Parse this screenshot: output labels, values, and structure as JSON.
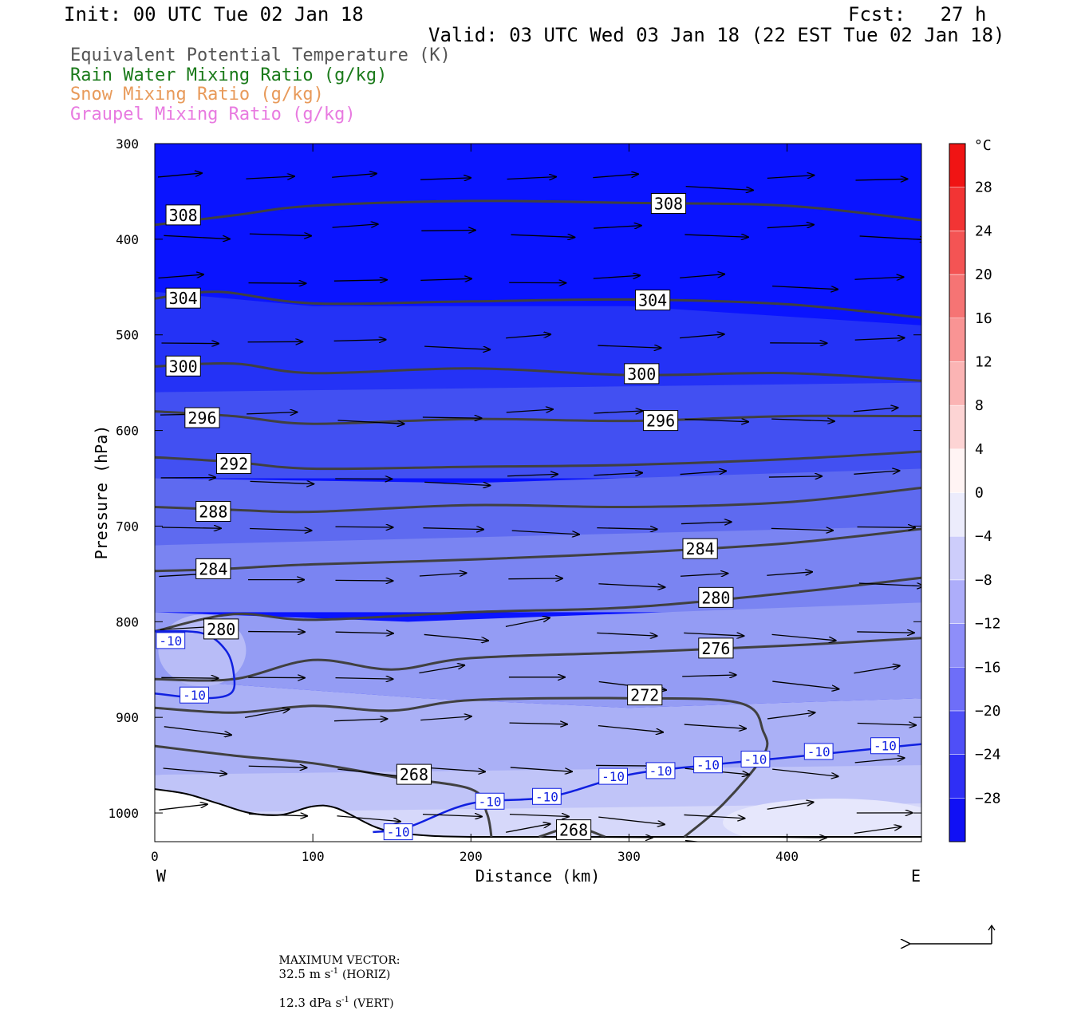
{
  "header": {
    "init": "Init: 00 UTC Tue 02 Jan 18",
    "fcst": "Fcst:   27 h",
    "valid": "Valid: 03 UTC Wed 03 Jan 18 (22 EST Tue 02 Jan 18)"
  },
  "legend_titles": [
    {
      "text": "Equivalent Potential Temperature (K)",
      "color": "#555555"
    },
    {
      "text": "Rain Water Mixing Ratio (g/kg)",
      "color": "#1a7a1a"
    },
    {
      "text": "Snow Mixing Ratio (g/kg)",
      "color": "#e89a5a"
    },
    {
      "text": "Graupel Mixing Ratio (g/kg)",
      "color": "#e87ae0"
    }
  ],
  "chart_data": {
    "type": "cross-section",
    "x_axis": {
      "label": "Distance (km)",
      "range": [
        0,
        485
      ],
      "ticks": [
        0,
        100,
        200,
        300,
        400
      ],
      "left_end_label": "W",
      "right_end_label": "E"
    },
    "y_axis": {
      "label": "Pressure (hPa)",
      "range": [
        300,
        1030
      ],
      "ticks": [
        300,
        400,
        500,
        600,
        700,
        800,
        900,
        1000
      ],
      "inverted": true
    },
    "colorbar": {
      "unit": "°C",
      "labels": [
        28,
        24,
        20,
        16,
        12,
        8,
        4,
        0,
        -4,
        -8,
        -12,
        -16,
        -20,
        -24,
        -28
      ],
      "min": -32,
      "max": 32,
      "step": 4
    },
    "theta_e_contours": [
      {
        "label": "308",
        "points": [
          [
            0,
            385
          ],
          [
            50,
            375
          ],
          [
            100,
            365
          ],
          [
            200,
            360
          ],
          [
            300,
            362
          ],
          [
            400,
            365
          ],
          [
            485,
            380
          ]
        ]
      },
      {
        "label": "304",
        "points": [
          [
            0,
            462
          ],
          [
            40,
            455
          ],
          [
            100,
            467
          ],
          [
            200,
            465
          ],
          [
            300,
            463
          ],
          [
            400,
            468
          ],
          [
            485,
            482
          ]
        ]
      },
      {
        "label": "300",
        "points": [
          [
            0,
            533
          ],
          [
            50,
            530
          ],
          [
            100,
            540
          ],
          [
            200,
            535
          ],
          [
            300,
            542
          ],
          [
            400,
            540
          ],
          [
            485,
            548
          ]
        ]
      },
      {
        "label": "296",
        "points": [
          [
            0,
            580
          ],
          [
            50,
            585
          ],
          [
            100,
            593
          ],
          [
            200,
            588
          ],
          [
            300,
            590
          ],
          [
            400,
            585
          ],
          [
            485,
            585
          ]
        ]
      },
      {
        "label": "292",
        "points": [
          [
            0,
            628
          ],
          [
            50,
            633
          ],
          [
            100,
            640
          ],
          [
            200,
            638
          ],
          [
            300,
            636
          ],
          [
            400,
            630
          ],
          [
            485,
            622
          ]
        ]
      },
      {
        "label": "288",
        "points": [
          [
            0,
            680
          ],
          [
            50,
            683
          ],
          [
            100,
            685
          ],
          [
            200,
            678
          ],
          [
            300,
            680
          ],
          [
            400,
            675
          ],
          [
            485,
            660
          ]
        ]
      },
      {
        "label": "284",
        "points": [
          [
            0,
            747
          ],
          [
            40,
            745
          ],
          [
            100,
            740
          ],
          [
            200,
            735
          ],
          [
            300,
            728
          ],
          [
            400,
            718
          ],
          [
            485,
            703
          ]
        ]
      },
      {
        "label": "280",
        "points": [
          [
            0,
            810
          ],
          [
            50,
            792
          ],
          [
            100,
            798
          ],
          [
            200,
            790
          ],
          [
            300,
            785
          ],
          [
            400,
            770
          ],
          [
            485,
            754
          ]
        ]
      },
      {
        "label": "276",
        "points": [
          [
            0,
            860
          ],
          [
            50,
            860
          ],
          [
            100,
            840
          ],
          [
            150,
            850
          ],
          [
            200,
            838
          ],
          [
            300,
            832
          ],
          [
            400,
            825
          ],
          [
            485,
            817
          ]
        ]
      },
      {
        "label": "272",
        "points": [
          [
            0,
            890
          ],
          [
            50,
            895
          ],
          [
            100,
            888
          ],
          [
            150,
            893
          ],
          [
            200,
            882
          ],
          [
            300,
            880
          ],
          [
            370,
            885
          ],
          [
            385,
            915
          ],
          [
            385,
            940
          ],
          [
            360,
            990
          ],
          [
            335,
            1025
          ]
        ]
      },
      {
        "label": "268",
        "points": [
          [
            0,
            930
          ],
          [
            50,
            940
          ],
          [
            100,
            948
          ],
          [
            150,
            962
          ],
          [
            200,
            975
          ],
          [
            210,
            1000
          ],
          [
            213,
            1025
          ]
        ]
      },
      {
        "label": "268",
        "points": [
          [
            243,
            1025
          ],
          [
            265,
            1015
          ],
          [
            285,
            1025
          ]
        ]
      }
    ],
    "temperature_contours": [
      {
        "label": "-10",
        "points": [
          [
            0,
            810
          ],
          [
            30,
            812
          ],
          [
            45,
            830
          ],
          [
            50,
            855
          ],
          [
            48,
            875
          ],
          [
            30,
            880
          ],
          [
            0,
            875
          ]
        ]
      },
      {
        "label": "-10",
        "points": [
          [
            138,
            1020
          ],
          [
            160,
            1015
          ],
          [
            200,
            990
          ],
          [
            250,
            983
          ],
          [
            300,
            960
          ],
          [
            350,
            950
          ],
          [
            400,
            942
          ],
          [
            485,
            928
          ]
        ]
      }
    ],
    "wind_vectors_note": "westerly circulation vectors throughout",
    "footer": {
      "max_vector_label": "MAXIMUM VECTOR:",
      "horiz": "32.5 m s",
      "horiz_unit_sup": "-1",
      "horiz_tag": "(HORIZ)",
      "vert": "12.3 dPa s",
      "vert_unit_sup": "-1",
      "vert_tag": "(VERT)"
    }
  }
}
